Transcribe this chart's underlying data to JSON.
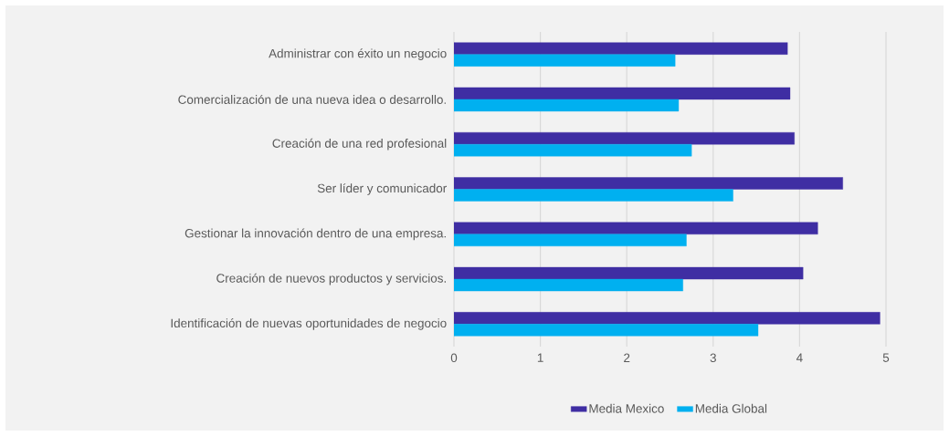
{
  "chart_data": {
    "type": "bar",
    "orientation": "horizontal",
    "categories": [
      "Administrar con éxito un negocio",
      "Comercialización de una nueva idea o desarrollo.",
      "Creación de una red profesional",
      "Ser líder y comunicador",
      "Gestionar la innovación dentro de una empresa.",
      "Creación de nuevos productos y servicios.",
      "Identificación de nuevas oportunidades de negocio"
    ],
    "series": [
      {
        "name": "Media Mexico",
        "color": "#3f2ea3",
        "values": [
          3.86,
          3.89,
          3.94,
          4.5,
          4.21,
          4.04,
          4.93
        ]
      },
      {
        "name": "Media Global",
        "color": "#00b0f0",
        "values": [
          2.56,
          2.6,
          2.75,
          3.23,
          2.69,
          2.65,
          3.52
        ]
      }
    ],
    "xlim": [
      0,
      5
    ],
    "xticks": [
      0,
      1,
      2,
      3,
      4,
      5
    ],
    "grid": "x",
    "legend": "bottom"
  }
}
